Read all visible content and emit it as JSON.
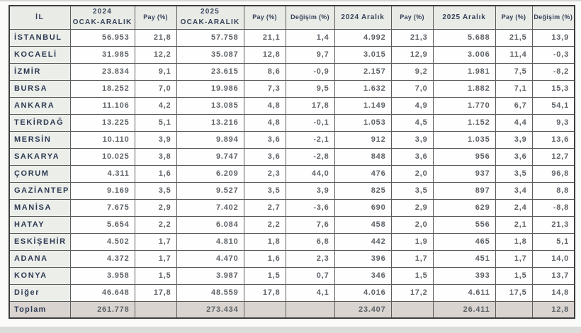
{
  "chart_data": {
    "type": "table",
    "headers": [
      "İL",
      "2024\nOCAK-ARALIK",
      "Pay (%)",
      "2025\nOCAK-ARALIK",
      "Pay (%)",
      "Değişim (%)",
      "2024 Aralık",
      "Pay (%)",
      "2025 Aralık",
      "Pay (%)",
      "Değişim (%)"
    ],
    "rows": [
      {
        "il": "İSTANBUL",
        "values": [
          "56.953",
          "21,8",
          "57.758",
          "21,1",
          "1,4",
          "4.992",
          "21,3",
          "5.688",
          "21,5",
          "13,9"
        ]
      },
      {
        "il": "KOCAELİ",
        "values": [
          "31.985",
          "12,2",
          "35.087",
          "12,8",
          "9,7",
          "3.015",
          "12,9",
          "3.006",
          "11,4",
          "-0,3"
        ]
      },
      {
        "il": "İZMİR",
        "values": [
          "23.834",
          "9,1",
          "23.615",
          "8,6",
          "-0,9",
          "2.157",
          "9,2",
          "1.981",
          "7,5",
          "-8,2"
        ]
      },
      {
        "il": "BURSA",
        "values": [
          "18.252",
          "7,0",
          "19.986",
          "7,3",
          "9,5",
          "1.632",
          "7,0",
          "1.882",
          "7,1",
          "15,3"
        ]
      },
      {
        "il": "ANKARA",
        "values": [
          "11.106",
          "4,2",
          "13.085",
          "4,8",
          "17,8",
          "1.149",
          "4,9",
          "1.770",
          "6,7",
          "54,1"
        ]
      },
      {
        "il": "TEKİRDAĞ",
        "values": [
          "13.225",
          "5,1",
          "13.216",
          "4,8",
          "-0,1",
          "1.053",
          "4,5",
          "1.152",
          "4,4",
          "9,3"
        ]
      },
      {
        "il": "MERSİN",
        "values": [
          "10.110",
          "3,9",
          "9.894",
          "3,6",
          "-2,1",
          "912",
          "3,9",
          "1.035",
          "3,9",
          "13,6"
        ]
      },
      {
        "il": "SAKARYA",
        "values": [
          "10.025",
          "3,8",
          "9.747",
          "3,6",
          "-2,8",
          "848",
          "3,6",
          "956",
          "3,6",
          "12,7"
        ]
      },
      {
        "il": "ÇORUM",
        "values": [
          "4.311",
          "1,6",
          "6.209",
          "2,3",
          "44,0",
          "476",
          "2,0",
          "937",
          "3,5",
          "96,8"
        ]
      },
      {
        "il": "GAZİANTEP",
        "values": [
          "9.169",
          "3,5",
          "9.527",
          "3,5",
          "3,9",
          "825",
          "3,5",
          "897",
          "3,4",
          "8,8"
        ]
      },
      {
        "il": "MANİSA",
        "values": [
          "7.675",
          "2,9",
          "7.402",
          "2,7",
          "-3,6",
          "690",
          "2,9",
          "629",
          "2,4",
          "-8,8"
        ]
      },
      {
        "il": "HATAY",
        "values": [
          "5.654",
          "2,2",
          "6.084",
          "2,2",
          "7,6",
          "458",
          "2,0",
          "556",
          "2,1",
          "21,3"
        ]
      },
      {
        "il": "ESKİŞEHİR",
        "values": [
          "4.502",
          "1,7",
          "4.810",
          "1,8",
          "6,8",
          "442",
          "1,9",
          "465",
          "1,8",
          "5,1"
        ]
      },
      {
        "il": "ADANA",
        "values": [
          "4.372",
          "1,7",
          "4.470",
          "1,6",
          "2,3",
          "396",
          "1,7",
          "451",
          "1,7",
          "14,0"
        ]
      },
      {
        "il": "KONYA",
        "values": [
          "3.958",
          "1,5",
          "3.987",
          "1,5",
          "0,7",
          "346",
          "1,5",
          "393",
          "1,5",
          "13,7"
        ]
      },
      {
        "il": "Diğer",
        "values": [
          "46.648",
          "17,8",
          "48.559",
          "17,8",
          "4,1",
          "4.016",
          "17,2",
          "4.611",
          "17,5",
          "14,8"
        ]
      }
    ],
    "total_row": {
      "il": "Toplam",
      "values": [
        "261.778",
        "",
        "273.434",
        "",
        "",
        "23.407",
        "",
        "26.411",
        "",
        "12,8"
      ]
    },
    "colors": {
      "header_bg": "#e9ebe6",
      "label_bg": "#eceeea",
      "cell_bg": "#fefefe",
      "total_bg": "#d9d4d0",
      "label_text": "#2d3a52",
      "number_text": "#5d6267",
      "border": "#5c5c5c"
    }
  }
}
